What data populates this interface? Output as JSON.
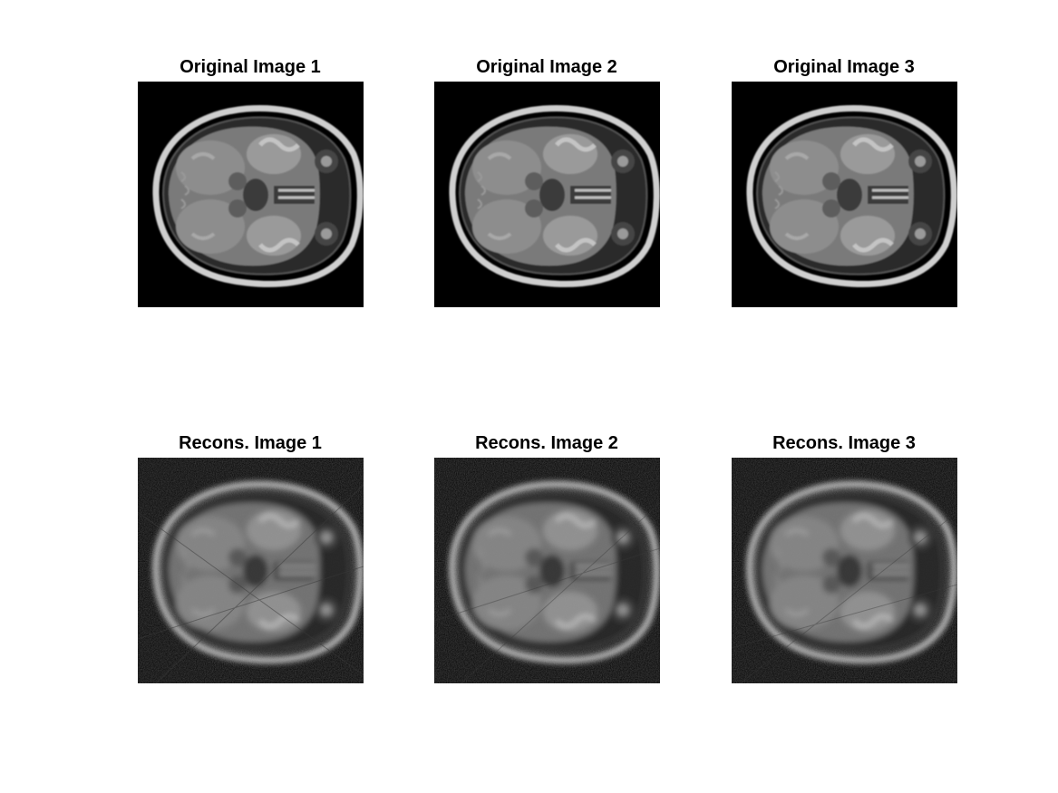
{
  "figure": {
    "panels": [
      {
        "title": "Original Image 1",
        "kind": "original"
      },
      {
        "title": "Original Image 2",
        "kind": "original"
      },
      {
        "title": "Original Image 3",
        "kind": "original"
      },
      {
        "title": "Recons. Image 1",
        "kind": "reconstructed"
      },
      {
        "title": "Recons. Image 2",
        "kind": "reconstructed"
      },
      {
        "title": "Recons. Image 3",
        "kind": "reconstructed"
      }
    ]
  },
  "colors": {
    "background": "#ffffff",
    "panel_background": "#000000",
    "title_text": "#000000"
  }
}
